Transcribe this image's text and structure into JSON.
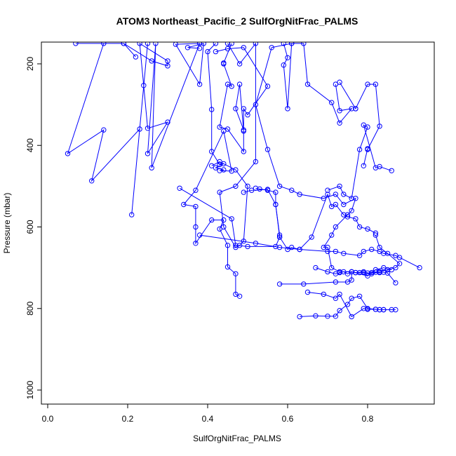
{
  "chart_data": {
    "type": "line",
    "title": "ATOM3 Northeast_Pacific_2 SulfOrgNitFrac_PALMS",
    "xlabel": "SulfOrgNitFrac_PALMS",
    "ylabel": "Pressure (mbar)",
    "xlim": [
      0.0,
      0.93
    ],
    "ylim": [
      1030,
      150
    ],
    "y_inverted": true,
    "xticks": [
      0.0,
      0.2,
      0.4,
      0.6,
      0.8
    ],
    "xtick_labels": [
      "0.0",
      "0.2",
      "0.4",
      "0.6",
      "0.8"
    ],
    "yticks": [
      200,
      400,
      600,
      800,
      1000
    ],
    "ytick_labels": [
      "200",
      "400",
      "600",
      "800",
      "1000"
    ],
    "grid": false,
    "color": "#0000ff",
    "marker": "open-circle",
    "series": [
      {
        "x": [
          0.07,
          0.19,
          0.22,
          0.19,
          0.26,
          0.3,
          0.3,
          0.23,
          0.24,
          0.25,
          0.3,
          0.25,
          0.27,
          0.26,
          0.38,
          0.32,
          0.38,
          0.39,
          0.35,
          0.38
        ],
        "y": [
          150,
          150,
          183,
          150,
          193,
          205,
          193,
          150,
          253,
          358,
          343,
          420,
          150,
          455,
          150,
          152,
          250,
          150,
          160,
          162
        ]
      },
      {
        "x": [
          0.14,
          0.05,
          0.14,
          0.11,
          0.23,
          0.21,
          0.25
        ],
        "y": [
          150,
          420,
          362,
          487,
          360,
          570,
          150
        ]
      },
      {
        "x": [
          0.42,
          0.4,
          0.41,
          0.41,
          0.43,
          0.44,
          0.42,
          0.44,
          0.43,
          0.46,
          0.44,
          0.37,
          0.34,
          0.37,
          0.37,
          0.37,
          0.41,
          0.44,
          0.43,
          0.45,
          0.45,
          0.47,
          0.47,
          0.48
        ],
        "y": [
          150,
          170,
          312,
          415,
          447,
          445,
          455,
          460,
          462,
          463,
          365,
          510,
          545,
          550,
          600,
          640,
          583,
          583,
          605,
          645,
          698,
          715,
          765,
          770
        ]
      },
      {
        "x": [
          0.46,
          0.44,
          0.44,
          0.46,
          0.45,
          0.43,
          0.45,
          0.49,
          0.49,
          0.48,
          0.47,
          0.49,
          0.49,
          0.5,
          0.55,
          0.49,
          0.45,
          0.42
        ],
        "y": [
          150,
          198,
          200,
          255,
          250,
          355,
          360,
          415,
          365,
          250,
          310,
          362,
          310,
          325,
          255,
          160,
          163,
          170
        ]
      },
      {
        "x": [
          0.45,
          0.48,
          0.52,
          0.52,
          0.47,
          0.43,
          0.44,
          0.47,
          0.48,
          0.49,
          0.5,
          0.47,
          0.43,
          0.41
        ],
        "y": [
          150,
          200,
          150,
          440,
          500,
          515,
          600,
          650,
          645,
          635,
          500,
          460,
          440,
          450
        ]
      },
      {
        "x": [
          0.33,
          0.46,
          0.47,
          0.5,
          0.57,
          0.58,
          0.58,
          0.57,
          0.55,
          0.51,
          0.49
        ],
        "y": [
          505,
          580,
          645,
          648,
          648,
          625,
          620,
          545,
          508,
          510,
          515
        ]
      },
      {
        "x": [
          0.59,
          0.6,
          0.59,
          0.6,
          0.61,
          0.64,
          0.65,
          0.71,
          0.73,
          0.76,
          0.73,
          0.72
        ],
        "y": [
          150,
          185,
          203,
          310,
          150,
          150,
          250,
          295,
          345,
          310,
          315,
          250
        ]
      },
      {
        "x": [
          0.52,
          0.53,
          0.55,
          0.57,
          0.57,
          0.58,
          0.6,
          0.61,
          0.63,
          0.66,
          0.7,
          0.71,
          0.72,
          0.74,
          0.75,
          0.77,
          0.78,
          0.8,
          0.82
        ],
        "y": [
          505,
          507,
          510,
          515,
          545,
          625,
          655,
          650,
          655,
          625,
          520,
          550,
          545,
          570,
          575,
          580,
          600,
          605,
          615
        ]
      },
      {
        "x": [
          0.61,
          0.56,
          0.52,
          0.55,
          0.58,
          0.61,
          0.63,
          0.69,
          0.72,
          0.74,
          0.77,
          0.76,
          0.75,
          0.72,
          0.71,
          0.69,
          0.7,
          0.71,
          0.73,
          0.76,
          0.8,
          0.82,
          0.84,
          0.86
        ],
        "y": [
          150,
          160,
          300,
          410,
          500,
          510,
          520,
          530,
          520,
          545,
          530,
          560,
          570,
          600,
          620,
          650,
          650,
          700,
          710,
          710,
          720,
          705,
          700,
          705
        ]
      },
      {
        "x": [
          0.38,
          0.52,
          0.58,
          0.63,
          0.7,
          0.72,
          0.74,
          0.78,
          0.79,
          0.81,
          0.83,
          0.84,
          0.87,
          0.88,
          0.93
        ],
        "y": [
          620,
          640,
          650,
          655,
          660,
          660,
          665,
          670,
          660,
          655,
          660,
          665,
          670,
          675,
          700
        ]
      },
      {
        "x": [
          0.58,
          0.64,
          0.72,
          0.75,
          0.76,
          0.76,
          0.77,
          0.79,
          0.81,
          0.83,
          0.85,
          0.87,
          0.88,
          0.85,
          0.83,
          0.82
        ],
        "y": [
          740,
          740,
          735,
          735,
          730,
          710,
          712,
          710,
          715,
          710,
          705,
          700,
          690,
          665,
          650,
          620
        ]
      },
      {
        "x": [
          0.67,
          0.7,
          0.72,
          0.73,
          0.74,
          0.75,
          0.76,
          0.77,
          0.78,
          0.79,
          0.8,
          0.81,
          0.82,
          0.83,
          0.84,
          0.85,
          0.87
        ],
        "y": [
          700,
          710,
          715,
          712,
          710,
          715,
          710,
          712,
          712,
          712,
          713,
          712,
          711,
          712,
          711,
          713,
          737
        ]
      },
      {
        "x": [
          0.63,
          0.67,
          0.7,
          0.72,
          0.73,
          0.75,
          0.76,
          0.78,
          0.8,
          0.82,
          0.83,
          0.84,
          0.86,
          0.87
        ],
        "y": [
          820,
          818,
          819,
          819,
          805,
          790,
          775,
          770,
          800,
          802,
          803,
          803,
          803,
          803
        ]
      },
      {
        "x": [
          0.65,
          0.69,
          0.72,
          0.73,
          0.76,
          0.79,
          0.8,
          0.82,
          0.83,
          0.84
        ],
        "y": [
          760,
          765,
          775,
          765,
          820,
          800,
          802,
          802,
          803,
          803
        ]
      },
      {
        "x": [
          0.7,
          0.73,
          0.74,
          0.76,
          0.78,
          0.8,
          0.79,
          0.82,
          0.83,
          0.86
        ],
        "y": [
          510,
          500,
          520,
          530,
          410,
          355,
          350,
          455,
          452,
          462
        ]
      },
      {
        "x": [
          0.73,
          0.77,
          0.77,
          0.8,
          0.82,
          0.83,
          0.8,
          0.8,
          0.79
        ],
        "y": [
          245,
          310,
          310,
          250,
          250,
          353,
          410,
          408,
          450
        ]
      }
    ]
  }
}
